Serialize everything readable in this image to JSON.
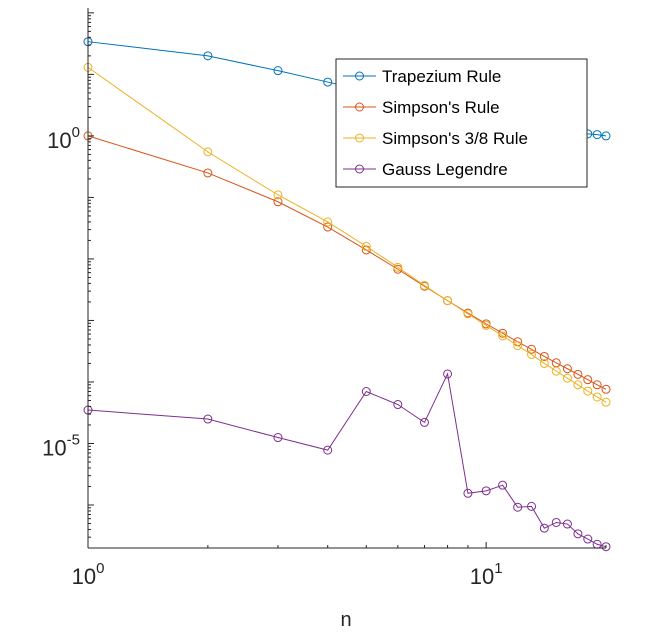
{
  "chart_data": {
    "type": "line",
    "xscale": "log",
    "yscale": "log",
    "xlim": [
      1,
      20
    ],
    "ylim": [
      2e-07,
      120
    ],
    "xlabel": "n",
    "ylabel": "",
    "title": "",
    "x_ticks": [
      {
        "value": 1,
        "base": "10",
        "exp": "0"
      },
      {
        "value": 10,
        "base": "10",
        "exp": "1"
      }
    ],
    "y_ticks": [
      {
        "value": 1,
        "base": "10",
        "exp": "0"
      },
      {
        "value": 1e-05,
        "base": "10",
        "exp": "-5"
      }
    ],
    "grid": false,
    "legend_position": "top-right",
    "x": [
      1,
      2,
      3,
      4,
      5,
      6,
      7,
      8,
      9,
      10,
      11,
      12,
      13,
      14,
      15,
      16,
      17,
      18,
      19,
      20
    ],
    "series": [
      {
        "name": "Trapezium Rule",
        "color": "#0072BD",
        "values": [
          34,
          20,
          11.5,
          7.5,
          5.4,
          4.2,
          3.4,
          2.85,
          2.45,
          2.15,
          1.9,
          1.7,
          1.55,
          1.42,
          1.32,
          1.23,
          1.15,
          1.08,
          1.05,
          1.0
        ]
      },
      {
        "name": "Simpson's Rule",
        "color": "#D95319",
        "values": [
          1.0,
          0.25,
          0.085,
          0.033,
          0.014,
          0.0068,
          0.0036,
          0.0021,
          0.00132,
          0.00088,
          0.00062,
          0.00045,
          0.00034,
          0.00026,
          0.000205,
          0.000164,
          0.000133,
          0.000109,
          9e-05,
          7.6e-05
        ]
      },
      {
        "name": "Simpson's 3/8 Rule",
        "color": "#EDB120",
        "values": [
          13,
          0.55,
          0.11,
          0.04,
          0.016,
          0.0073,
          0.0037,
          0.0021,
          0.00128,
          0.00083,
          0.00056,
          0.00039,
          0.00028,
          0.0002,
          0.00015,
          0.000115,
          9e-05,
          7.1e-05,
          5.7e-05,
          4.7e-05
        ]
      },
      {
        "name": "Gauss Legendre",
        "color": "#7E2F8E",
        "values": [
          3.5e-05,
          2.5e-05,
          1.25e-05,
          7.8e-06,
          7e-05,
          4.3e-05,
          2.2e-05,
          0.000135,
          1.55e-06,
          1.7e-06,
          2.1e-06,
          9.2e-07,
          9.5e-07,
          4.2e-07,
          5.2e-07,
          4.9e-07,
          3.4e-07,
          2.8e-07,
          2.3e-07,
          2.1e-07
        ]
      }
    ]
  }
}
